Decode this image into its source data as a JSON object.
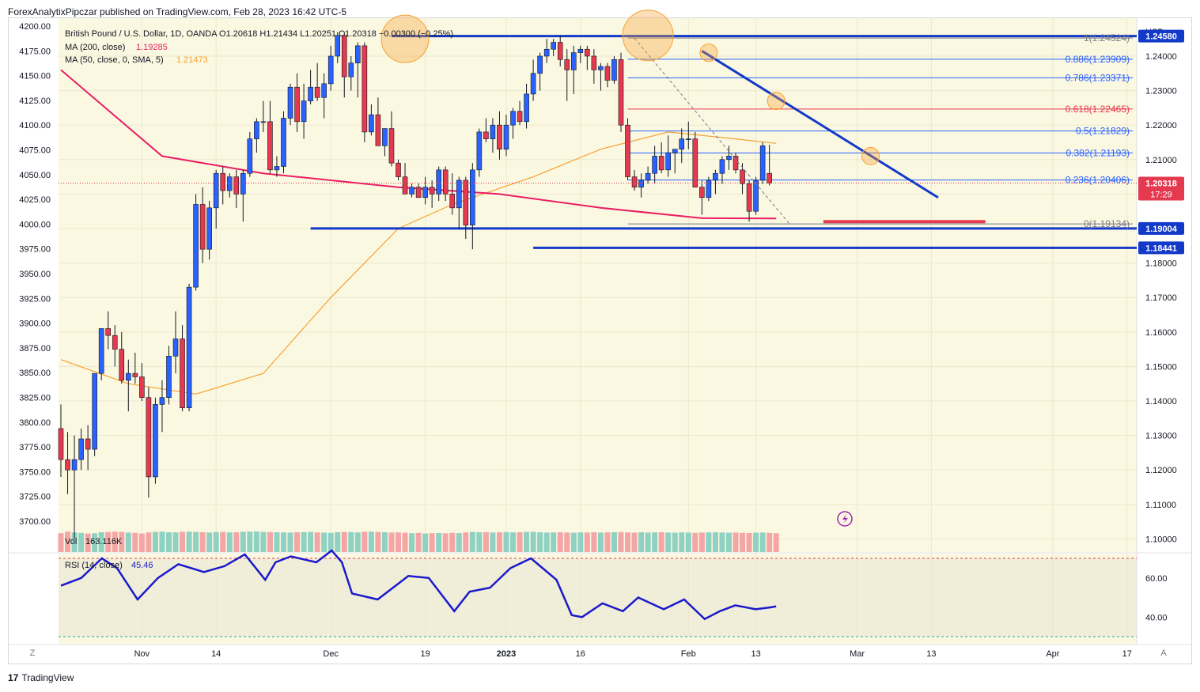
{
  "publisher_line": "ForexAnalytixPipczar published on TradingView.com, Feb 28, 2023 16:42 UTC-5",
  "footer_logo": "TradingView",
  "logo_mark": "17",
  "legend": {
    "symbol_line": "British Pound / U.S. Dollar, 1D, OANDA  O1.20618  H1.21434  L1.20251  C1.20318  −0.00300 (−0.25%)",
    "ma200_label": "MA (200, close)",
    "ma200_value": "1.19285",
    "ma50_label": "MA (50, close, 0, SMA, 5)",
    "ma50_value": "1.21473",
    "vol_label": "Vol",
    "vol_value": "163.116K",
    "rsi_label": "RSI (14, close)",
    "rsi_value": "45.46"
  },
  "colors": {
    "background": "#fbf8e1",
    "up": "#2962ff",
    "down": "#e53950",
    "ma200": "#e91e63",
    "ma50": "#f7a133",
    "rsi": "#1a1acc",
    "level": "#1339c8"
  },
  "chart_data": {
    "type": "candlestick",
    "symbol": "GBPUSD",
    "timeframe": "1D",
    "currency": "USD",
    "price_axis_ticks": [
      1.24,
      1.23,
      1.22,
      1.21,
      1.2,
      1.19,
      1.18,
      1.17,
      1.16,
      1.15,
      1.14,
      1.13,
      1.12,
      1.11,
      1.1
    ],
    "price_axis_tick_labels": [
      "1.24000",
      "1.23000",
      "1.22000",
      "1.21000",
      "1.20000",
      "1.19000",
      "1.18000",
      "1.17000",
      "1.16000",
      "1.15000",
      "1.14000",
      "1.13000",
      "1.12000",
      "1.11000",
      "1.10000"
    ],
    "left_axis_ticks": [
      4200,
      4175,
      4150,
      4125,
      4100,
      4075,
      4050,
      4025,
      4000,
      3975,
      3950,
      3925,
      3900,
      3875,
      3850,
      3825,
      3800,
      3775,
      3750,
      3725,
      3700
    ],
    "left_axis_tick_labels": [
      "4200.00",
      "4175.00",
      "4150.00",
      "4125.00",
      "4100.00",
      "4075.00",
      "4050.00",
      "4025.00",
      "4000.00",
      "3975.00",
      "3950.00",
      "3925.00",
      "3900.00",
      "3875.00",
      "3850.00",
      "3825.00",
      "3800.00",
      "3775.00",
      "3750.00",
      "3725.00",
      "3700.00"
    ],
    "price_range": [
      1.0962,
      1.251
    ],
    "x_axis_labels": [
      "Nov",
      "14",
      "Dec",
      "19",
      "2023",
      "16",
      "Feb",
      "13",
      "Mar",
      "13",
      "Apr",
      "17"
    ],
    "x_axis_label_bars": [
      12,
      23,
      40,
      54,
      66,
      77,
      93,
      103,
      118,
      129,
      147,
      158
    ],
    "x_axis_left_button": "Z",
    "x_axis_right_button": "A",
    "ohlc": [
      [
        1.132,
        1.139,
        1.118,
        1.123
      ],
      [
        1.123,
        1.131,
        1.113,
        1.12
      ],
      [
        1.12,
        1.13,
        1.1,
        1.123
      ],
      [
        1.123,
        1.132,
        1.12,
        1.129
      ],
      [
        1.129,
        1.133,
        1.12,
        1.126
      ],
      [
        1.126,
        1.148,
        1.124,
        1.148
      ],
      [
        1.148,
        1.161,
        1.146,
        1.161
      ],
      [
        1.161,
        1.166,
        1.155,
        1.159
      ],
      [
        1.159,
        1.162,
        1.15,
        1.155
      ],
      [
        1.155,
        1.16,
        1.145,
        1.146
      ],
      [
        1.146,
        1.152,
        1.137,
        1.148
      ],
      [
        1.148,
        1.154,
        1.145,
        1.147
      ],
      [
        1.147,
        1.151,
        1.14,
        1.141
      ],
      [
        1.141,
        1.144,
        1.112,
        1.118
      ],
      [
        1.118,
        1.141,
        1.116,
        1.139
      ],
      [
        1.139,
        1.146,
        1.131,
        1.141
      ],
      [
        1.141,
        1.156,
        1.139,
        1.153
      ],
      [
        1.153,
        1.166,
        1.148,
        1.158
      ],
      [
        1.158,
        1.162,
        1.137,
        1.138
      ],
      [
        1.138,
        1.174,
        1.137,
        1.173
      ],
      [
        1.173,
        1.2,
        1.172,
        1.197
      ],
      [
        1.197,
        1.202,
        1.18,
        1.184
      ],
      [
        1.184,
        1.198,
        1.181,
        1.196
      ],
      [
        1.196,
        1.207,
        1.19,
        1.206
      ],
      [
        1.206,
        1.208,
        1.197,
        1.201
      ],
      [
        1.201,
        1.206,
        1.199,
        1.205
      ],
      [
        1.205,
        1.207,
        1.196,
        1.2
      ],
      [
        1.2,
        1.207,
        1.192,
        1.206
      ],
      [
        1.206,
        1.218,
        1.205,
        1.216
      ],
      [
        1.216,
        1.222,
        1.212,
        1.221
      ],
      [
        1.221,
        1.227,
        1.218,
        1.221
      ],
      [
        1.221,
        1.227,
        1.206,
        1.207
      ],
      [
        1.207,
        1.211,
        1.205,
        1.208
      ],
      [
        1.208,
        1.224,
        1.206,
        1.222
      ],
      [
        1.222,
        1.232,
        1.22,
        1.231
      ],
      [
        1.231,
        1.235,
        1.218,
        1.221
      ],
      [
        1.221,
        1.232,
        1.216,
        1.227
      ],
      [
        1.227,
        1.236,
        1.226,
        1.231
      ],
      [
        1.231,
        1.238,
        1.227,
        1.228
      ],
      [
        1.228,
        1.235,
        1.222,
        1.232
      ],
      [
        1.232,
        1.243,
        1.23,
        1.24
      ],
      [
        1.24,
        1.247,
        1.238,
        1.246
      ],
      [
        1.246,
        1.247,
        1.228,
        1.234
      ],
      [
        1.234,
        1.24,
        1.23,
        1.238
      ],
      [
        1.238,
        1.244,
        1.228,
        1.243
      ],
      [
        1.243,
        1.244,
        1.215,
        1.218
      ],
      [
        1.218,
        1.226,
        1.217,
        1.223
      ],
      [
        1.223,
        1.228,
        1.214,
        1.214
      ],
      [
        1.214,
        1.219,
        1.211,
        1.219
      ],
      [
        1.219,
        1.224,
        1.208,
        1.209
      ],
      [
        1.209,
        1.21,
        1.204,
        1.205
      ],
      [
        1.205,
        1.209,
        1.2,
        1.2
      ],
      [
        1.2,
        1.203,
        1.199,
        1.202
      ],
      [
        1.202,
        1.203,
        1.199,
        1.199
      ],
      [
        1.199,
        1.205,
        1.197,
        1.202
      ],
      [
        1.202,
        1.204,
        1.196,
        1.2
      ],
      [
        1.2,
        1.208,
        1.198,
        1.207
      ],
      [
        1.207,
        1.208,
        1.198,
        1.2
      ],
      [
        1.2,
        1.206,
        1.194,
        1.196
      ],
      [
        1.196,
        1.205,
        1.19,
        1.204
      ],
      [
        1.204,
        1.205,
        1.187,
        1.191
      ],
      [
        1.191,
        1.209,
        1.184,
        1.207
      ],
      [
        1.207,
        1.219,
        1.205,
        1.218
      ],
      [
        1.218,
        1.222,
        1.215,
        1.216
      ],
      [
        1.216,
        1.222,
        1.212,
        1.22
      ],
      [
        1.22,
        1.224,
        1.21,
        1.213
      ],
      [
        1.213,
        1.223,
        1.211,
        1.22
      ],
      [
        1.22,
        1.225,
        1.216,
        1.224
      ],
      [
        1.224,
        1.227,
        1.22,
        1.221
      ],
      [
        1.221,
        1.232,
        1.219,
        1.229
      ],
      [
        1.229,
        1.239,
        1.227,
        1.235
      ],
      [
        1.235,
        1.241,
        1.23,
        1.24
      ],
      [
        1.24,
        1.245,
        1.238,
        1.242
      ],
      [
        1.242,
        1.245,
        1.24,
        1.244
      ],
      [
        1.244,
        1.246,
        1.237,
        1.239
      ],
      [
        1.239,
        1.242,
        1.227,
        1.236
      ],
      [
        1.236,
        1.243,
        1.229,
        1.241
      ],
      [
        1.241,
        1.243,
        1.238,
        1.242
      ],
      [
        1.242,
        1.243,
        1.236,
        1.24
      ],
      [
        1.24,
        1.242,
        1.232,
        1.236
      ],
      [
        1.236,
        1.238,
        1.23,
        1.237
      ],
      [
        1.237,
        1.238,
        1.231,
        1.233
      ],
      [
        1.233,
        1.24,
        1.232,
        1.239
      ],
      [
        1.239,
        1.241,
        1.218,
        1.22
      ],
      [
        1.22,
        1.222,
        1.204,
        1.205
      ],
      [
        1.205,
        1.207,
        1.201,
        1.202
      ],
      [
        1.202,
        1.206,
        1.199,
        1.204
      ],
      [
        1.204,
        1.208,
        1.203,
        1.206
      ],
      [
        1.206,
        1.214,
        1.203,
        1.211
      ],
      [
        1.211,
        1.215,
        1.206,
        1.207
      ],
      [
        1.207,
        1.217,
        1.205,
        1.212
      ],
      [
        1.212,
        1.213,
        1.206,
        1.213
      ],
      [
        1.213,
        1.219,
        1.209,
        1.216
      ],
      [
        1.216,
        1.221,
        1.213,
        1.216
      ],
      [
        1.216,
        1.218,
        1.202,
        1.202
      ],
      [
        1.202,
        1.204,
        1.194,
        1.199
      ],
      [
        1.199,
        1.205,
        1.198,
        1.204
      ],
      [
        1.204,
        1.207,
        1.2,
        1.206
      ],
      [
        1.206,
        1.211,
        1.203,
        1.21
      ],
      [
        1.21,
        1.214,
        1.207,
        1.211
      ],
      [
        1.211,
        1.212,
        1.206,
        1.207
      ],
      [
        1.207,
        1.209,
        1.2,
        1.203
      ],
      [
        1.203,
        1.204,
        1.192,
        1.195
      ],
      [
        1.195,
        1.205,
        1.194,
        1.204
      ],
      [
        1.204,
        1.215,
        1.203,
        1.214
      ],
      [
        1.206,
        1.2143,
        1.2025,
        1.2032
      ]
    ],
    "ma200": [
      [
        0,
        1.236
      ],
      [
        15,
        1.211
      ],
      [
        30,
        1.206
      ],
      [
        50,
        1.202
      ],
      [
        65,
        1.2
      ],
      [
        80,
        1.196
      ],
      [
        95,
        1.193
      ],
      [
        106,
        1.1929
      ]
    ],
    "ma50": [
      [
        0,
        1.152
      ],
      [
        10,
        1.145
      ],
      [
        20,
        1.142
      ],
      [
        30,
        1.148
      ],
      [
        40,
        1.17
      ],
      [
        50,
        1.19
      ],
      [
        58,
        1.197
      ],
      [
        70,
        1.205
      ],
      [
        80,
        1.213
      ],
      [
        90,
        1.218
      ],
      [
        100,
        1.216
      ],
      [
        106,
        1.2147
      ]
    ],
    "volume": [
      120,
      130,
      125,
      122,
      118,
      120,
      126,
      128,
      130,
      128,
      124,
      122,
      118,
      125,
      128,
      130,
      126,
      125,
      129,
      130,
      128,
      126,
      124,
      127,
      128,
      125,
      126,
      129,
      130,
      131,
      128,
      127,
      126,
      125,
      124,
      126,
      127,
      128,
      125,
      124,
      122,
      126,
      128,
      127,
      125,
      129,
      130,
      128,
      126,
      124,
      125,
      123,
      120,
      122,
      118,
      120,
      121,
      119,
      122,
      120,
      125,
      128,
      126,
      127,
      124,
      126,
      127,
      125,
      126,
      128,
      129,
      126,
      124,
      125,
      126,
      124,
      123,
      125,
      124,
      126,
      124,
      125,
      126,
      127,
      125,
      124,
      126,
      124,
      125,
      126,
      124,
      123,
      125,
      124,
      122,
      124,
      125,
      126,
      124,
      123,
      124,
      122,
      121,
      123,
      124,
      122,
      120
    ],
    "rsi": [
      [
        0,
        56
      ],
      [
        4,
        60
      ],
      [
        8,
        70
      ],
      [
        11,
        65
      ],
      [
        15,
        49
      ],
      [
        19,
        60
      ],
      [
        23,
        67
      ],
      [
        28,
        63
      ],
      [
        32,
        66
      ],
      [
        36,
        72
      ],
      [
        40,
        59
      ],
      [
        42,
        68
      ],
      [
        45,
        71
      ],
      [
        50,
        68
      ],
      [
        53,
        74
      ],
      [
        55,
        68
      ],
      [
        57,
        52
      ],
      [
        62,
        49
      ],
      [
        68,
        61
      ],
      [
        72,
        60
      ],
      [
        77,
        43
      ],
      [
        80,
        53
      ],
      [
        84,
        55
      ],
      [
        88,
        65
      ],
      [
        92,
        70
      ],
      [
        97,
        59
      ],
      [
        100,
        41
      ],
      [
        102,
        40
      ],
      [
        106,
        47
      ],
      [
        110,
        43
      ],
      [
        113,
        50
      ],
      [
        118,
        44
      ],
      [
        122,
        49
      ],
      [
        126,
        39
      ],
      [
        129,
        43
      ],
      [
        132,
        46
      ],
      [
        136,
        44
      ],
      [
        139,
        45
      ],
      [
        140,
        45.46
      ]
    ],
    "rsi_levels": [
      70,
      30
    ],
    "rsi_axis_ticks": [
      60,
      40
    ],
    "rsi_axis_tick_labels": [
      "60.00",
      "40.00"
    ],
    "horizontal_levels": [
      {
        "price": 1.2458,
        "label": "1.24580"
      },
      {
        "price": 1.19004,
        "label": "1.19004"
      },
      {
        "price": 1.18441,
        "label": "1.18441"
      }
    ],
    "current_price": {
      "price": 1.20318,
      "label": "1.20318",
      "countdown": "17:29"
    },
    "fibonacci": [
      {
        "ratio": "1",
        "price": 1.24524,
        "label": "1(1.24524)"
      },
      {
        "ratio": "0.886",
        "price": 1.23909,
        "label": "0.886(1.23909)"
      },
      {
        "ratio": "0.786",
        "price": 1.23371,
        "label": "0.786(1.23371)"
      },
      {
        "ratio": "0.618",
        "price": 1.22465,
        "label": "0.618(1.22465)"
      },
      {
        "ratio": "0.5",
        "price": 1.21829,
        "label": "0.5(1.21829)"
      },
      {
        "ratio": "0.382",
        "price": 1.21193,
        "label": "0.382(1.21193)"
      },
      {
        "ratio": "0.236",
        "price": 1.20406,
        "label": "0.236(1.20406)"
      },
      {
        "ratio": "0",
        "price": 1.19134,
        "label": "0(1.19134)"
      }
    ],
    "trendline": [
      [
        95,
        1.2415
      ],
      [
        130,
        1.199
      ]
    ],
    "support_mark": [
      [
        113,
        1.192
      ],
      [
        137,
        1.192
      ]
    ],
    "highlight_circles": [
      [
        51,
        1.245
      ],
      [
        87,
        1.246
      ],
      [
        96,
        1.241
      ],
      [
        106,
        1.227
      ],
      [
        120,
        1.211
      ]
    ]
  }
}
